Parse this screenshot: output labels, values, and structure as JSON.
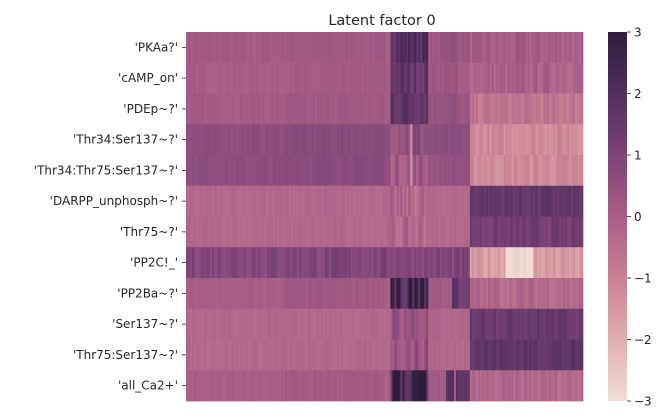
{
  "chart_data": {
    "type": "heatmap",
    "title": "Latent factor 0",
    "rows": [
      "'PKAa?'",
      "'cAMP_on'",
      "'PDEp~?'",
      "'Thr34:Ser137~?'",
      "'Thr34:Thr75:Ser137~?'",
      "'DARPP_unphosph~?'",
      "'Thr75~?'",
      "'PP2C!_'",
      "'PP2Ba~?'",
      "'Ser137~?'",
      "'Thr75:Ser137~?'",
      "'all_Ca2+'"
    ],
    "n_columns": 200,
    "xlabel": "",
    "ylabel": "",
    "colorbar": {
      "min": -3,
      "max": 3,
      "ticks": [
        3,
        2,
        1,
        0,
        -1,
        -2,
        -3
      ],
      "tick_labels": [
        "3",
        "2",
        "1",
        "0",
        "−1",
        "−2",
        "−3"
      ]
    },
    "colormap": [
      "#f0dcd6",
      "#e2aeb0",
      "#c98194",
      "#a85e87",
      "#7d4378",
      "#522f5e",
      "#2e1e3c"
    ],
    "column_segments_note_free": true,
    "segments": [
      {
        "row": 0,
        "base": [
          0.1,
          0.2,
          0.0,
          0.2,
          2.0,
          0.5,
          0.3,
          0.0
        ],
        "bounds": [
          0,
          50,
          100,
          110,
          140,
          145,
          140,
          200
        ]
      },
      {
        "row": 1,
        "base": [
          0.0,
          0.1,
          0.1,
          0.3,
          1.6,
          0.3,
          0.0,
          -0.1
        ]
      },
      {
        "row": 2,
        "base": [
          0.1,
          0.2,
          0.0,
          0.4,
          1.8,
          0.5,
          0.2,
          -0.7
        ]
      },
      {
        "row": 3,
        "base": [
          0.6,
          0.7,
          0.6,
          0.6,
          0.6,
          0.6,
          0.6,
          -1.2
        ]
      },
      {
        "row": 4,
        "base": [
          0.6,
          0.7,
          0.5,
          0.4,
          0.2,
          0.5,
          0.5,
          -1.2
        ]
      },
      {
        "row": 5,
        "base": [
          -0.3,
          -0.3,
          -0.3,
          -0.3,
          -0.3,
          -0.3,
          -0.3,
          1.6
        ]
      },
      {
        "row": 6,
        "base": [
          -0.3,
          -0.3,
          -0.3,
          -0.3,
          -0.3,
          -0.3,
          -0.3,
          1.2
        ]
      },
      {
        "row": 7,
        "base": [
          0.9,
          0.9,
          0.9,
          0.9,
          0.9,
          0.9,
          0.9,
          -1.6
        ]
      },
      {
        "row": 8,
        "base": [
          0.0,
          0.2,
          0.0,
          0.2,
          1.4,
          0.1,
          1.2,
          -0.3
        ]
      },
      {
        "row": 9,
        "base": [
          -0.3,
          -0.3,
          -0.3,
          -0.2,
          0.4,
          -0.3,
          -0.3,
          1.5
        ]
      },
      {
        "row": 10,
        "base": [
          -0.3,
          -0.3,
          -0.3,
          -0.2,
          0.4,
          -0.3,
          -0.3,
          1.7
        ]
      },
      {
        "row": 11,
        "base": [
          0.0,
          0.1,
          0.0,
          0.2,
          1.6,
          0.1,
          1.6,
          -0.3
        ]
      }
    ]
  }
}
